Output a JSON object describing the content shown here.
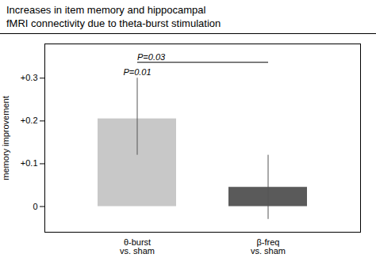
{
  "chart_data": {
    "type": "bar",
    "title": "Increases in item memory and hippocampal\nfMRI connectivity due to theta-burst stimulation",
    "categories": [
      "θ-burst\nvs. sham",
      "β-freq\nvs. sham"
    ],
    "values": [
      0.205,
      0.045
    ],
    "colors": [
      "#c8c8c8",
      "#5a5a5a"
    ],
    "err_up": [
      0.095,
      0.075
    ],
    "err_down": [
      0.085,
      0.075
    ],
    "ylabel": "memory improvement",
    "ylim": [
      -0.06,
      0.38
    ],
    "yticks": [
      0,
      {
        "value": 0.1,
        "label": "+0.1"
      },
      {
        "value": 0.2,
        "label": "+0.2"
      },
      {
        "value": 0.3,
        "label": "+0.3"
      }
    ],
    "grid": false,
    "annotations": [
      {
        "text": "P=0.01",
        "category": "θ-burst\nvs. sham"
      },
      {
        "text": "P=0.03",
        "categories": [
          "θ-burst\nvs. sham",
          "β-freq\nvs. sham"
        ]
      }
    ]
  }
}
